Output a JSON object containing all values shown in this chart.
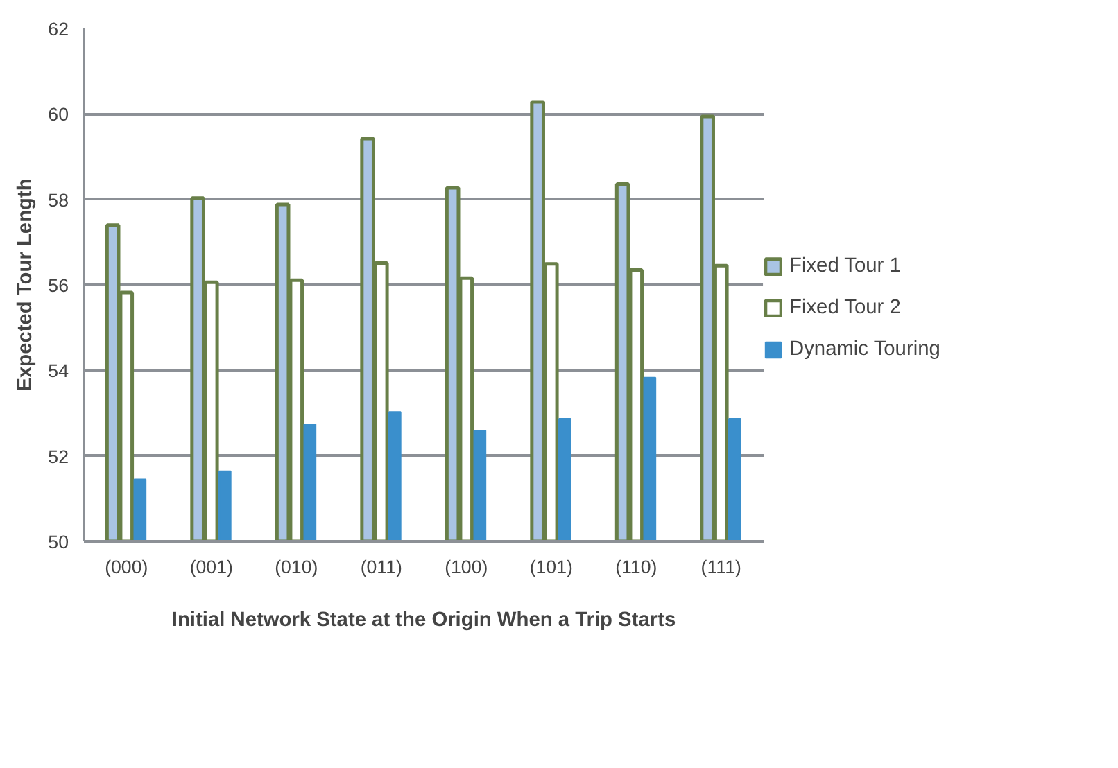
{
  "chart_data": {
    "type": "bar",
    "xlabel": "Initial Network State at the Origin When a Trip Starts",
    "ylabel": "Expected Tour Length",
    "categories": [
      "(000)",
      "(001)",
      "(010)",
      "(011)",
      "(100)",
      "(101)",
      "(110)",
      "(111)"
    ],
    "ylim": [
      50,
      62
    ],
    "yticks": [
      50,
      52,
      54,
      56,
      58,
      60,
      62
    ],
    "grid": "y",
    "legend": "right",
    "series": [
      {
        "name": "Fixed Tour 1",
        "color": "#a9c4e4",
        "values": [
          57.4,
          58.03,
          57.88,
          59.42,
          58.27,
          60.28,
          58.36,
          59.94
        ]
      },
      {
        "name": "Fixed Tour 2",
        "color": "#ffffff",
        "values": [
          55.82,
          56.06,
          56.11,
          56.51,
          56.16,
          56.49,
          56.35,
          56.45
        ]
      },
      {
        "name": "Dynamic Touring",
        "color": "#3a8fcc",
        "values": [
          51.45,
          51.64,
          52.74,
          53.03,
          52.59,
          52.87,
          53.83,
          52.87
        ]
      }
    ]
  }
}
